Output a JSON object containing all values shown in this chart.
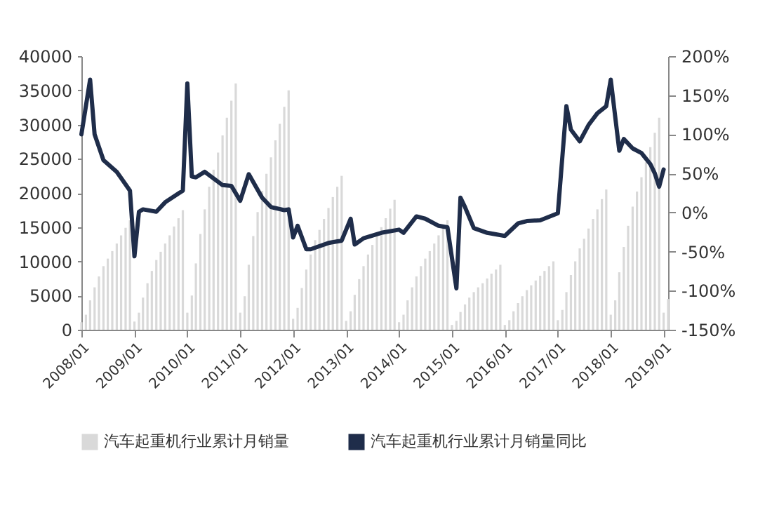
{
  "chart_data": {
    "type": "bar",
    "x": [
      "2008-01",
      "2008-02",
      "2008-03",
      "2008-04",
      "2008-05",
      "2008-06",
      "2008-07",
      "2008-08",
      "2008-09",
      "2008-10",
      "2008-11",
      "2008-12",
      "2009-01",
      "2009-02",
      "2009-03",
      "2009-04",
      "2009-05",
      "2009-06",
      "2009-07",
      "2009-08",
      "2009-09",
      "2009-10",
      "2009-11",
      "2009-12",
      "2010-01",
      "2010-02",
      "2010-03",
      "2010-04",
      "2010-05",
      "2010-06",
      "2010-07",
      "2010-08",
      "2010-09",
      "2010-10",
      "2010-11",
      "2010-12",
      "2011-01",
      "2011-02",
      "2011-03",
      "2011-04",
      "2011-05",
      "2011-06",
      "2011-07",
      "2011-08",
      "2011-09",
      "2011-10",
      "2011-11",
      "2011-12",
      "2012-01",
      "2012-02",
      "2012-03",
      "2012-04",
      "2012-05",
      "2012-06",
      "2012-07",
      "2012-08",
      "2012-09",
      "2012-10",
      "2012-11",
      "2012-12",
      "2013-01",
      "2013-02",
      "2013-03",
      "2013-04",
      "2013-05",
      "2013-06",
      "2013-07",
      "2013-08",
      "2013-09",
      "2013-10",
      "2013-11",
      "2013-12",
      "2014-01",
      "2014-02",
      "2014-03",
      "2014-04",
      "2014-05",
      "2014-06",
      "2014-07",
      "2014-08",
      "2014-09",
      "2014-10",
      "2014-11",
      "2014-12",
      "2015-01",
      "2015-02",
      "2015-03",
      "2015-04",
      "2015-05",
      "2015-06",
      "2015-07",
      "2015-08",
      "2015-09",
      "2015-10",
      "2015-11",
      "2015-12",
      "2016-01",
      "2016-02",
      "2016-03",
      "2016-04",
      "2016-05",
      "2016-06",
      "2016-07",
      "2016-08",
      "2016-09",
      "2016-10",
      "2016-11",
      "2016-12",
      "2017-01",
      "2017-02",
      "2017-03",
      "2017-04",
      "2017-05",
      "2017-06",
      "2017-07",
      "2017-08",
      "2017-09",
      "2017-10",
      "2017-11",
      "2017-12",
      "2018-01",
      "2018-02",
      "2018-03",
      "2018-04",
      "2018-05",
      "2018-06",
      "2018-07",
      "2018-08",
      "2018-09",
      "2018-10",
      "2018-11",
      "2018-12",
      "2019-01",
      "2019-02"
    ],
    "series": [
      {
        "name": "汽车起重机行业累计月销量",
        "color": "#d9d9d9",
        "values": [
          1100,
          2200,
          4300,
          6200,
          7800,
          9300,
          10400,
          11500,
          12600,
          13800,
          14900,
          16000,
          1200,
          2500,
          4700,
          6800,
          8600,
          10200,
          11400,
          12600,
          13800,
          15100,
          16300,
          17500,
          2500,
          5000,
          9700,
          14000,
          17600,
          20900,
          23400,
          25900,
          28400,
          31000,
          33500,
          36000,
          2500,
          4900,
          9500,
          13700,
          17200,
          20300,
          22800,
          25200,
          27700,
          30100,
          32600,
          35000,
          1600,
          3200,
          6100,
          8800,
          11000,
          13100,
          14600,
          16200,
          17800,
          19400,
          20900,
          22500,
          1300,
          2700,
          5100,
          7400,
          9300,
          11000,
          12400,
          13700,
          15000,
          16300,
          17700,
          19000,
          1100,
          2200,
          4300,
          6200,
          7800,
          9300,
          10400,
          11500,
          12600,
          13800,
          14900,
          16000,
          700,
          1300,
          2600,
          3700,
          4700,
          5500,
          6200,
          6800,
          7500,
          8200,
          8800,
          9500,
          700,
          1400,
          2700,
          3900,
          4900,
          5800,
          6500,
          7200,
          7900,
          8600,
          9300,
          10000,
          1400,
          2900,
          5500,
          8000,
          10000,
          11900,
          13300,
          14800,
          16200,
          17600,
          19100,
          20500,
          2200,
          4300,
          8400,
          12100,
          15200,
          18000,
          20200,
          22300,
          24500,
          26700,
          28800,
          31000,
          2500,
          4500
        ]
      },
      {
        "name": "汽车起重机行业累计月销量同比",
        "type": "line",
        "axis": "y2",
        "color": "#1f2d4a",
        "x": [
          "2008-01",
          "2008-03",
          "2008-04",
          "2008-06",
          "2008-09",
          "2008-12",
          "2009-01",
          "2009-02",
          "2009-03",
          "2009-06",
          "2009-08",
          "2009-12",
          "2010-01",
          "2010-02",
          "2010-03",
          "2010-05",
          "2010-09",
          "2010-11",
          "2011-01",
          "2011-03",
          "2011-06",
          "2011-08",
          "2011-11",
          "2011-12",
          "2012-01",
          "2012-02",
          "2012-04",
          "2012-05",
          "2012-09",
          "2012-12",
          "2013-02",
          "2013-03",
          "2013-05",
          "2013-09",
          "2014-01",
          "2014-02",
          "2014-05",
          "2014-07",
          "2014-10",
          "2014-12",
          "2015-02",
          "2015-03",
          "2015-04",
          "2015-06",
          "2015-09",
          "2016-01",
          "2016-04",
          "2016-06",
          "2016-09",
          "2017-01",
          "2017-03",
          "2017-04",
          "2017-06",
          "2017-08",
          "2017-10",
          "2017-12",
          "2018-01",
          "2018-03",
          "2018-04",
          "2018-06",
          "2018-08",
          "2018-10",
          "2018-11",
          "2018-12",
          "2019-01"
        ],
        "values": [
          100,
          170,
          100,
          67,
          52,
          28,
          -56,
          1,
          4,
          1,
          13,
          28,
          165,
          46,
          45,
          52,
          35,
          34,
          15,
          49,
          19,
          7,
          3,
          4,
          -32,
          -17,
          -47,
          -47,
          -39,
          -36,
          -8,
          -41,
          -33,
          -26,
          -22,
          -26,
          -5,
          -8,
          -17,
          -19,
          -97,
          19,
          7,
          -20,
          -26,
          -30,
          -14,
          -11,
          -10,
          -1,
          136,
          106,
          91,
          112,
          127,
          136,
          170,
          79,
          94,
          82,
          76,
          62,
          50,
          33,
          55
        ]
      }
    ],
    "xlim": [
      "2008-01",
      "2019-02"
    ],
    "xticks": [
      {
        "value": "2008-01",
        "label": "2008/01"
      },
      {
        "value": "2009-01",
        "label": "2009/01"
      },
      {
        "value": "2010-01",
        "label": "2010/01"
      },
      {
        "value": "2011-01",
        "label": "2011/01"
      },
      {
        "value": "2012-01",
        "label": "2012/01"
      },
      {
        "value": "2013-01",
        "label": "2013/01"
      },
      {
        "value": "2014-01",
        "label": "2014/01"
      },
      {
        "value": "2015-01",
        "label": "2015/01"
      },
      {
        "value": "2016-01",
        "label": "2016/01"
      },
      {
        "value": "2017-01",
        "label": "2017/01"
      },
      {
        "value": "2018-01",
        "label": "2018/01"
      },
      {
        "value": "2019-01",
        "label": "2019/01"
      }
    ],
    "ylim": [
      0,
      40000
    ],
    "yticks": [
      0,
      5000,
      10000,
      15000,
      20000,
      25000,
      30000,
      35000,
      40000
    ],
    "y2lim": [
      -150,
      200
    ],
    "y2ticks": [
      {
        "value": -150,
        "label": "-150%"
      },
      {
        "value": -100,
        "label": "-100%"
      },
      {
        "value": -50,
        "label": "-50%"
      },
      {
        "value": 0,
        "label": "0%"
      },
      {
        "value": 50,
        "label": "50%"
      },
      {
        "value": 100,
        "label": "100%"
      },
      {
        "value": 150,
        "label": "150%"
      },
      {
        "value": 200,
        "label": "200%"
      }
    ],
    "legend": "bottom",
    "grid": false
  }
}
